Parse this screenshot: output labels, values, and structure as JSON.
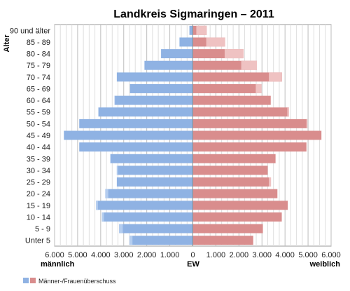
{
  "chart_data": {
    "type": "bar",
    "orientation": "horizontal-population-pyramid",
    "title": "Landkreis Sigmaringen – 2011",
    "ylabel": "Alter",
    "xlabel_left": "männlich",
    "xlabel_center": "EW",
    "xlabel_right": "weiblich",
    "categories": [
      "90 und älter",
      "85 - 89",
      "80 - 84",
      "75 - 79",
      "70 - 74",
      "65 - 69",
      "60 - 64",
      "55 - 59",
      "50 - 54",
      "45 - 49",
      "40 - 44",
      "35 - 39",
      "30 - 34",
      "25 - 29",
      "20 - 24",
      "15 - 19",
      "10 - 14",
      "5 - 9",
      "Unter 5"
    ],
    "xlim": [
      -6000,
      6000
    ],
    "xticks": [
      -6000,
      -5000,
      -4000,
      -3000,
      -2000,
      -1000,
      0,
      1000,
      2000,
      3000,
      4000,
      5000,
      6000
    ],
    "xtick_labels": [
      "6.000",
      "5.000",
      "4.000",
      "3.000",
      "2.000",
      "1.000",
      "0",
      "1.000",
      "2.000",
      "3.000",
      "4.000",
      "5.000",
      "6.000"
    ],
    "grid": true,
    "series": [
      {
        "name": "männlich",
        "color": "#8fb2e3",
        "surplus_color": "#b4cdef",
        "values": [
          150,
          580,
          1380,
          2100,
          3300,
          2730,
          3400,
          4100,
          4930,
          5600,
          4930,
          3580,
          3300,
          3300,
          3800,
          4200,
          3950,
          3200,
          2750
        ]
      },
      {
        "name": "weiblich",
        "color": "#d98d8d",
        "surplus_color": "#efc2c2",
        "values": [
          600,
          1400,
          2200,
          2780,
          3870,
          2980,
          3380,
          4170,
          4970,
          5580,
          4930,
          3590,
          3250,
          3390,
          3670,
          4120,
          3860,
          3040,
          2620
        ]
      }
    ],
    "legend": {
      "position": "bottom-left",
      "label": "Männer-/Frauenüberschuss"
    }
  }
}
